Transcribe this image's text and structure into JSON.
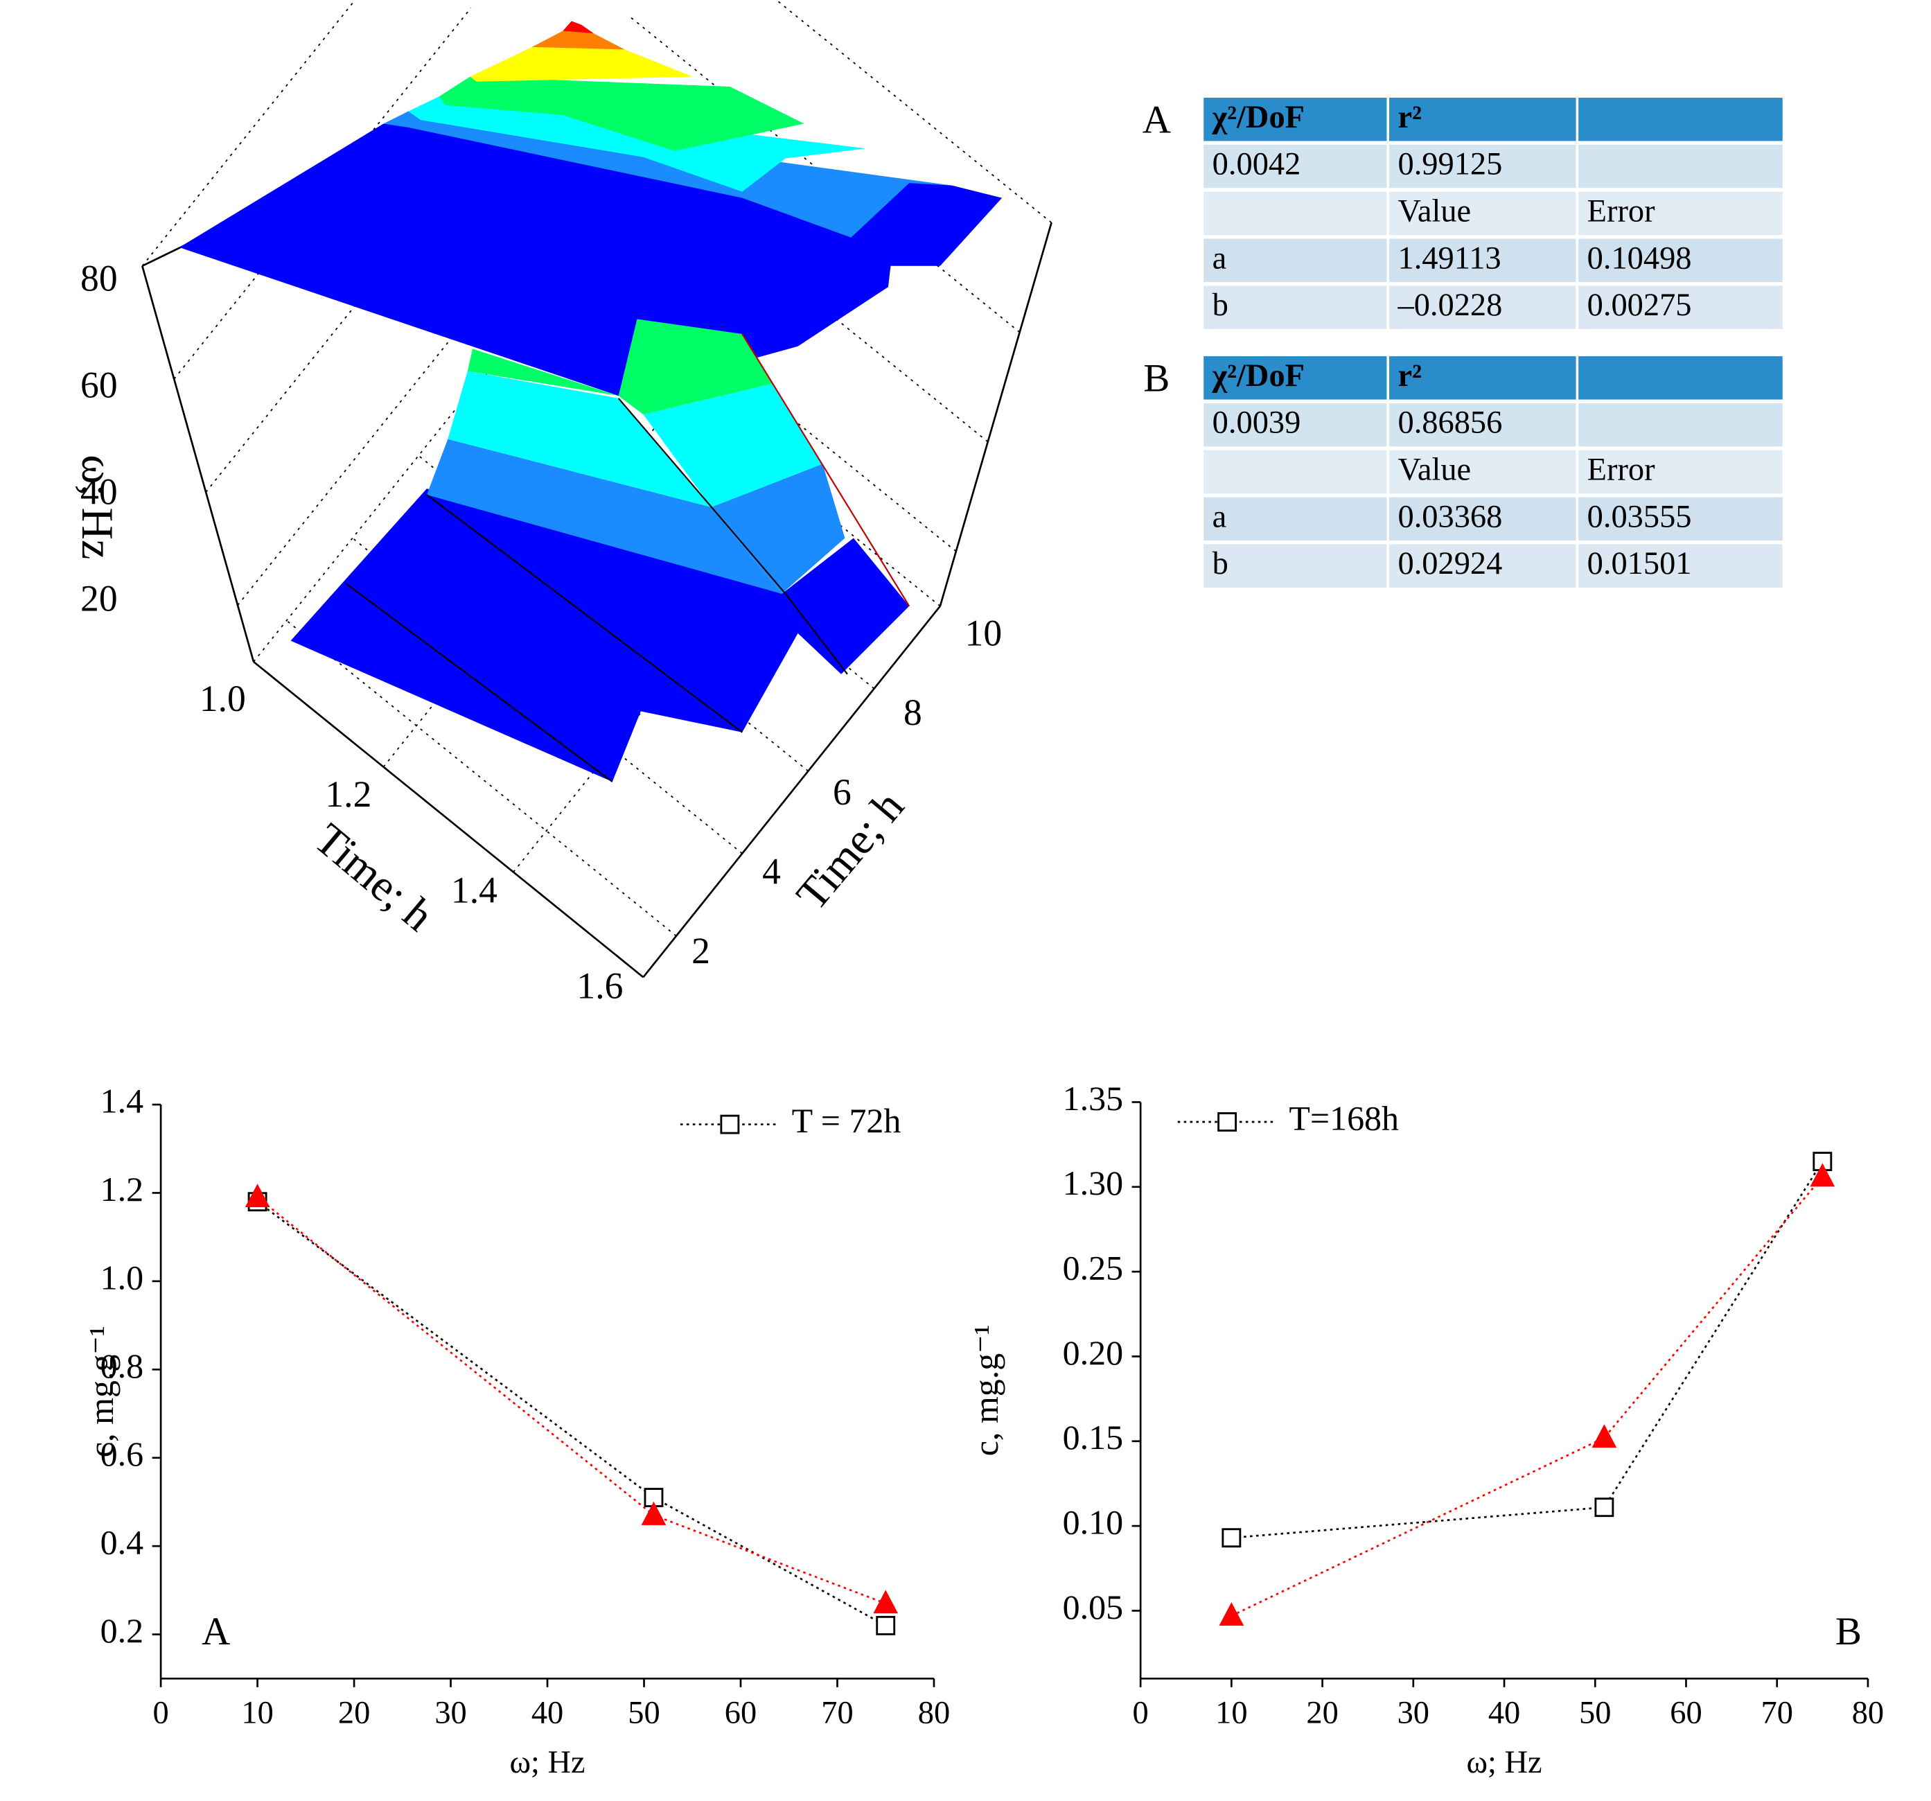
{
  "chart_data": [
    {
      "type": "surface3d",
      "xlabel": "Time; h",
      "ylabel": "Time; h",
      "zlabel": "ω; Hz",
      "xlim": [
        1.0,
        1.6
      ],
      "xticks": [
        {
          "value": 1.0,
          "label": "1.0"
        },
        1.2,
        1.4,
        1.6
      ],
      "ylim": [
        1,
        10
      ],
      "yticks": [
        2,
        4,
        6,
        8,
        10
      ],
      "zlim": [
        10,
        80
      ],
      "zticks": [
        20,
        40,
        60,
        80
      ]
    },
    {
      "type": "line",
      "xlabel": "ω; Hz",
      "ylabel": "c, mg.g⁻¹",
      "panel_label": "A",
      "x": [
        10,
        51,
        75
      ],
      "xlim": [
        0,
        80
      ],
      "xticks": [
        0,
        10,
        20,
        30,
        40,
        50,
        60,
        70,
        80
      ],
      "ylim": [
        0.1,
        1.4
      ],
      "yticks": [
        0.2,
        0.4,
        0.6,
        0.8,
        {
          "value": 1.0,
          "label": "1.0"
        },
        1.2,
        1.4
      ],
      "legend": "upper right",
      "series": [
        {
          "name": "T = 72h",
          "color": "#000000",
          "marker": "square",
          "values": [
            1.18,
            0.51,
            0.22
          ]
        },
        {
          "color": "#ff0000",
          "marker": "triangle",
          "values": [
            1.19,
            0.47,
            0.27
          ]
        }
      ]
    },
    {
      "type": "line",
      "xlabel": "ω; Hz",
      "ylabel": "c, mg.g⁻¹",
      "panel_label": "B",
      "x": [
        10,
        51,
        75
      ],
      "xlim": [
        0,
        80
      ],
      "xticks": [
        0,
        10,
        20,
        30,
        40,
        50,
        60,
        70,
        80
      ],
      "ylim": [
        0.01,
        1.35
      ],
      "ybreak": [
        0.3,
        1.3
      ],
      "yticks": [
        0.05,
        {
          "value": 0.1,
          "label": "0.10"
        },
        0.15,
        {
          "value": 0.2,
          "label": "0.20"
        },
        0.25,
        {
          "value": 1.3,
          "label": "1.30"
        },
        1.35
      ],
      "legend": "upper left",
      "series": [
        {
          "name": "T=168h",
          "color": "#000000",
          "marker": "square",
          "values": [
            0.093,
            0.111,
            1.315
          ]
        },
        {
          "color": "#ff0000",
          "marker": "triangle",
          "values": [
            0.047,
            0.152,
            1.306
          ]
        }
      ]
    }
  ],
  "tables": [
    {
      "label": "A",
      "stats_header": [
        "χ²/DoF",
        "r²"
      ],
      "stats": [
        "0.0042",
        "0.99125"
      ],
      "param_header": [
        "Value",
        "Error"
      ],
      "params": [
        [
          "a",
          "1.49113",
          "0.10498"
        ],
        [
          "b",
          "–0.0228",
          "0.00275"
        ]
      ]
    },
    {
      "label": "B",
      "stats_header": [
        "χ²/DoF",
        "r²"
      ],
      "stats": [
        "0.0039",
        "0.86856"
      ],
      "param_header": [
        "Value",
        "Error"
      ],
      "params": [
        [
          "a",
          "0.03368",
          "0.03555"
        ],
        [
          "b",
          "0.02924",
          "0.01501"
        ]
      ]
    }
  ]
}
